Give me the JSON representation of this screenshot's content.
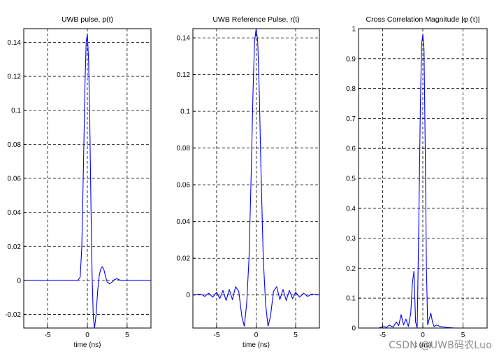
{
  "watermark": "CSDN @UWB码农Luo",
  "chart_data": [
    {
      "type": "line",
      "title": "UWB pulse, p(t)",
      "xlabel": "time (ns)",
      "ylabel": "",
      "xlim": [
        -8,
        8
      ],
      "ylim": [
        -0.028,
        0.148
      ],
      "xticks": [
        -5,
        0,
        5
      ],
      "xtick_labels": [
        "-5",
        "0",
        "5"
      ],
      "yticks": [
        -0.02,
        0,
        0.02,
        0.04,
        0.06,
        0.08,
        0.1,
        0.12,
        0.14
      ],
      "ytick_labels": [
        "-0.02",
        "0",
        "0.02",
        "0.04",
        "0.06",
        "0.08",
        "0.1",
        "0.12",
        "0.14"
      ],
      "grid": true,
      "grid_style": "dashed",
      "color": "#0000ff",
      "series": [
        {
          "x": [
            -8,
            -1.2,
            -0.9,
            -0.7,
            -0.5,
            -0.3,
            -0.15,
            0,
            0.15,
            0.3,
            0.45,
            0.6,
            0.75,
            0.9,
            1.1,
            1.3,
            1.5,
            1.7,
            1.9,
            2.1,
            2.3,
            2.5,
            2.8,
            3.1,
            3.4,
            3.7,
            4.2,
            5,
            8
          ],
          "y": [
            0,
            0,
            0.002,
            0.02,
            0.065,
            0.115,
            0.14,
            0.145,
            0.13,
            0.095,
            0.045,
            0.002,
            -0.022,
            -0.028,
            -0.02,
            -0.006,
            0.003,
            0.007,
            0.008,
            0.006,
            0.002,
            -0.001,
            -0.002,
            -0.001,
            0.0005,
            0.001,
            0,
            0,
            0
          ]
        }
      ]
    },
    {
      "type": "line",
      "title": "UWB Reference Pulse, r(t)",
      "xlabel": "time (ns)",
      "ylabel": "",
      "xlim": [
        -8,
        8
      ],
      "ylim": [
        -0.018,
        0.145
      ],
      "xticks": [
        -5,
        0,
        5
      ],
      "xtick_labels": [
        "-5",
        "0",
        "5"
      ],
      "yticks": [
        0,
        0.02,
        0.04,
        0.06,
        0.08,
        0.1,
        0.12,
        0.14
      ],
      "ytick_labels": [
        "0",
        "0.02",
        "0.04",
        "0.06",
        "0.08",
        "0.1",
        "0.12",
        "0.14"
      ],
      "grid": true,
      "grid_style": "dashed",
      "color": "#0000ff",
      "series": [
        {
          "x": [
            -8,
            -7,
            -6.5,
            -6,
            -5.5,
            -5,
            -4.6,
            -4.2,
            -3.8,
            -3.4,
            -3.0,
            -2.6,
            -2.2,
            -1.8,
            -1.5,
            -1.2,
            -0.9,
            -0.6,
            -0.4,
            -0.2,
            0,
            0.2,
            0.4,
            0.6,
            0.9,
            1.2,
            1.5,
            1.8,
            2.2,
            2.6,
            3.0,
            3.4,
            3.8,
            4.2,
            4.6,
            5,
            5.5,
            6,
            6.5,
            7,
            8
          ],
          "y": [
            0,
            0.0005,
            -0.0008,
            0.001,
            -0.0012,
            0.0015,
            -0.002,
            0.0025,
            -0.003,
            0.003,
            -0.0025,
            0.0045,
            0.002,
            -0.012,
            -0.017,
            -0.005,
            0.02,
            0.07,
            0.11,
            0.138,
            0.145,
            0.138,
            0.11,
            0.07,
            0.02,
            -0.005,
            -0.017,
            -0.012,
            0.002,
            0.0045,
            -0.0025,
            0.003,
            -0.003,
            0.0025,
            -0.002,
            0.0015,
            -0.0012,
            0.001,
            -0.0008,
            0.0005,
            0
          ]
        }
      ]
    },
    {
      "type": "line",
      "title": "Cross Correlation Magnitude |φ (τ)|",
      "xlabel": "τ (ns)",
      "ylabel": "",
      "xlim": [
        -8,
        8
      ],
      "ylim": [
        0,
        1
      ],
      "xticks": [
        -5,
        0,
        5
      ],
      "xtick_labels": [
        "-5",
        "0",
        "5"
      ],
      "yticks": [
        0,
        0.1,
        0.2,
        0.3,
        0.4,
        0.5,
        0.6,
        0.7,
        0.8,
        0.9,
        1
      ],
      "ytick_labels": [
        "0",
        "0.1",
        "0.2",
        "0.3",
        "0.4",
        "0.5",
        "0.6",
        "0.7",
        "0.8",
        "0.9",
        "1"
      ],
      "grid": true,
      "grid_style": "dashed",
      "color": "#0000ff",
      "series": [
        {
          "x": [
            -8,
            -5.5,
            -4.8,
            -4.5,
            -4.2,
            -3.7,
            -3.3,
            -3.0,
            -2.7,
            -2.4,
            -2.1,
            -1.8,
            -1.5,
            -1.3,
            -1.1,
            -0.9,
            -0.7,
            -0.5,
            -0.3,
            -0.15,
            0,
            0.15,
            0.3,
            0.45,
            0.6,
            0.8,
            1.0,
            1.2,
            1.4,
            1.7,
            2.2,
            3,
            4,
            8
          ],
          "y": [
            0,
            0,
            0.005,
            0.002,
            0.01,
            0.003,
            0.02,
            0.008,
            0.045,
            0.01,
            0.03,
            0.005,
            0.05,
            0.15,
            0.19,
            0.02,
            0.0,
            0.35,
            0.75,
            0.95,
            0.98,
            0.93,
            0.6,
            0.2,
            0.01,
            0.03,
            0.05,
            0.02,
            0.005,
            0.01,
            0.005,
            0.002,
            0,
            0
          ]
        }
      ]
    }
  ]
}
